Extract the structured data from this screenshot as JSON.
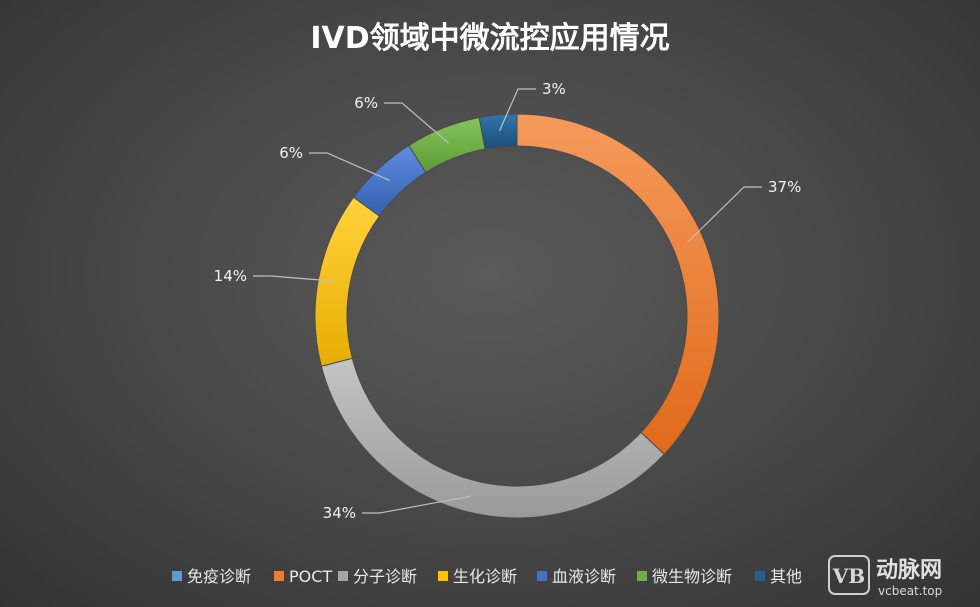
{
  "chart_data": {
    "type": "pie",
    "style": "donut",
    "title": "IVD领域中微流控应用情况",
    "categories": [
      "免疫诊断",
      "POCT",
      "分子诊断",
      "生化诊断",
      "血液诊断",
      "微生物诊断",
      "其他"
    ],
    "values": [
      0,
      37,
      34,
      14,
      6,
      6,
      3
    ],
    "labels": [
      "",
      "37%",
      "34%",
      "14%",
      "6%",
      "6%",
      "3%"
    ],
    "colors": [
      "#5b9bd5",
      "#ed7d31",
      "#a5a5a5",
      "#ffc000",
      "#4472c4",
      "#70ad47",
      "#255e91"
    ],
    "legend_position": "bottom"
  },
  "watermark": {
    "logo_letters": "VB",
    "name": "动脉网",
    "url": "vcbeat.top"
  }
}
